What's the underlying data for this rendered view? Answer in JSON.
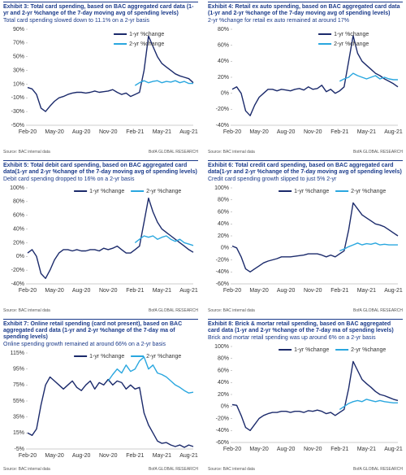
{
  "chart_data": [
    {
      "type": "line",
      "title": "Exhibit 3: Total card spending, based on BAC aggregated card data (1-yr and 2-yr %change of the 7-day moving avg of spending levels)",
      "subtitle": "Total card spending slowed down to 11.1% on a 2-yr basis",
      "source": "Source: BAC internal data",
      "credit": "BofA GLOBAL RESEARCH",
      "legend": "upper-right",
      "categories": [
        "Feb-20",
        null,
        null,
        null,
        null,
        null,
        "May-20",
        null,
        null,
        null,
        null,
        null,
        "Aug-20",
        null,
        null,
        null,
        null,
        null,
        "Nov-20",
        null,
        null,
        null,
        null,
        null,
        "Feb-21",
        null,
        null,
        null,
        null,
        null,
        "May-21",
        null,
        null,
        null,
        null,
        null,
        "Aug-21",
        null
      ],
      "ylim": [
        -50,
        90
      ],
      "yticks": [
        {
          "value": -50,
          "label": "-50%"
        },
        {
          "value": -30,
          "label": "-30%"
        },
        {
          "value": -10,
          "label": "-10%"
        },
        {
          "value": 10,
          "label": "10%"
        },
        {
          "value": 30,
          "label": "30%"
        },
        {
          "value": 50,
          "label": "50%"
        },
        {
          "value": 70,
          "label": "70%"
        },
        {
          "value": 90,
          "label": "90%"
        }
      ],
      "series": [
        {
          "name": "1-yr %change",
          "color": "#1b2a6b",
          "values": [
            5,
            3,
            -5,
            -25,
            -30,
            -22,
            -15,
            -10,
            -8,
            -5,
            -3,
            -2,
            -2,
            -3,
            -2,
            0,
            -2,
            -1,
            0,
            2,
            -2,
            -5,
            -3,
            -8,
            -5,
            -2,
            30,
            80,
            65,
            50,
            40,
            35,
            30,
            25,
            22,
            20,
            18,
            12
          ]
        },
        {
          "name": "2-yr %change",
          "color": "#2aa7df",
          "values": [
            null,
            null,
            null,
            null,
            null,
            null,
            null,
            null,
            null,
            null,
            null,
            null,
            null,
            null,
            null,
            null,
            null,
            null,
            null,
            null,
            null,
            null,
            null,
            null,
            8,
            12,
            15,
            12,
            14,
            15,
            12,
            14,
            13,
            15,
            12,
            14,
            11,
            11
          ]
        }
      ]
    },
    {
      "type": "line",
      "title": "Exhibit 4: Retail ex auto spending, based on BAC aggregated card data (1-yr and 2-yr %change of the 7-day moving avg of spending levels)",
      "subtitle": "2-yr %change for retail ex auto remained at around 17%",
      "source": "Source: BAC internal data",
      "credit": "BofA GLOBAL RESEARCH",
      "legend": "upper-right",
      "categories": [
        "Feb-20",
        null,
        null,
        null,
        null,
        null,
        "May-20",
        null,
        null,
        null,
        null,
        null,
        "Aug-20",
        null,
        null,
        null,
        null,
        null,
        "Nov-20",
        null,
        null,
        null,
        null,
        null,
        "Feb-21",
        null,
        null,
        null,
        null,
        null,
        "May-21",
        null,
        null,
        null,
        null,
        null,
        "Aug-21",
        null
      ],
      "ylim": [
        -40,
        80
      ],
      "yticks": [
        {
          "value": -40,
          "label": "-40%"
        },
        {
          "value": -20,
          "label": "-20%"
        },
        {
          "value": 0,
          "label": "0%"
        },
        {
          "value": 20,
          "label": "20%"
        },
        {
          "value": 40,
          "label": "40%"
        },
        {
          "value": 60,
          "label": "60%"
        },
        {
          "value": 80,
          "label": "80%"
        }
      ],
      "series": [
        {
          "name": "1-yr %change",
          "color": "#1b2a6b",
          "values": [
            5,
            8,
            0,
            -22,
            -28,
            -15,
            -5,
            0,
            5,
            5,
            3,
            5,
            4,
            3,
            5,
            6,
            4,
            8,
            5,
            6,
            10,
            2,
            5,
            0,
            3,
            8,
            40,
            72,
            50,
            40,
            35,
            30,
            25,
            22,
            18,
            15,
            12,
            8
          ]
        },
        {
          "name": "2-yr %change",
          "color": "#2aa7df",
          "values": [
            null,
            null,
            null,
            null,
            null,
            null,
            null,
            null,
            null,
            null,
            null,
            null,
            null,
            null,
            null,
            null,
            null,
            null,
            null,
            null,
            null,
            null,
            null,
            null,
            15,
            18,
            20,
            25,
            22,
            20,
            18,
            20,
            22,
            18,
            20,
            18,
            17,
            17
          ]
        }
      ]
    },
    {
      "type": "line",
      "title": "Exhibit 5: Total debit card spending, based on BAC aggregated card data(1-yr and 2-yr %change of the 7-day moving avg of spending levels)",
      "subtitle": "Debit card spending dropped to 16% on a 2-yr basis",
      "source": "Source: BAC internal data",
      "credit": "BofA GLOBAL RESEARCH",
      "legend": "top",
      "categories": [
        "Feb-20",
        null,
        null,
        null,
        null,
        null,
        "May-20",
        null,
        null,
        null,
        null,
        null,
        "Aug-20",
        null,
        null,
        null,
        null,
        null,
        "Nov-20",
        null,
        null,
        null,
        null,
        null,
        "Feb-21",
        null,
        null,
        null,
        null,
        null,
        "May-21",
        null,
        null,
        null,
        null,
        null,
        "Aug-21",
        null
      ],
      "ylim": [
        -40,
        100
      ],
      "yticks": [
        {
          "value": -40,
          "label": "-40%"
        },
        {
          "value": -20,
          "label": "-20%"
        },
        {
          "value": 0,
          "label": "0%"
        },
        {
          "value": 20,
          "label": "20%"
        },
        {
          "value": 40,
          "label": "40%"
        },
        {
          "value": 60,
          "label": "60%"
        },
        {
          "value": 80,
          "label": "80%"
        },
        {
          "value": 100,
          "label": "100%"
        }
      ],
      "series": [
        {
          "name": "1-yr %change",
          "color": "#1b2a6b",
          "values": [
            5,
            10,
            0,
            -25,
            -32,
            -20,
            -5,
            5,
            10,
            10,
            8,
            10,
            8,
            8,
            10,
            10,
            8,
            12,
            10,
            12,
            15,
            10,
            5,
            5,
            10,
            15,
            50,
            85,
            65,
            50,
            40,
            35,
            30,
            25,
            20,
            15,
            10,
            6
          ]
        },
        {
          "name": "2-yr %change",
          "color": "#2aa7df",
          "values": [
            null,
            null,
            null,
            null,
            null,
            null,
            null,
            null,
            null,
            null,
            null,
            null,
            null,
            null,
            null,
            null,
            null,
            null,
            null,
            null,
            null,
            null,
            null,
            null,
            20,
            25,
            30,
            28,
            30,
            25,
            28,
            30,
            25,
            22,
            25,
            20,
            18,
            16
          ]
        }
      ]
    },
    {
      "type": "line",
      "title": "Exhibit 6: Total credit card spending, based on BAC aggregated card data(1-yr and 2-yr %change of the 7-day moving avg of spending levels)",
      "subtitle": "Credit card spending growth slipped to just 5% 2-yr",
      "source": "Source: BAC internal data",
      "credit": "BofA GLOBAL RESEARCH",
      "legend": "top",
      "categories": [
        "Feb-20",
        null,
        null,
        null,
        null,
        null,
        "May-20",
        null,
        null,
        null,
        null,
        null,
        "Aug-20",
        null,
        null,
        null,
        null,
        null,
        "Nov-20",
        null,
        null,
        null,
        null,
        null,
        "Feb-21",
        null,
        null,
        null,
        null,
        null,
        "May-21",
        null,
        null,
        null,
        null,
        null,
        "Aug-21",
        null
      ],
      "ylim": [
        -60,
        100
      ],
      "yticks": [
        {
          "value": -60,
          "label": "-60%"
        },
        {
          "value": -40,
          "label": "-40%"
        },
        {
          "value": -20,
          "label": "-20%"
        },
        {
          "value": 0,
          "label": "0%"
        },
        {
          "value": 20,
          "label": "20%"
        },
        {
          "value": 40,
          "label": "40%"
        },
        {
          "value": 60,
          "label": "60%"
        },
        {
          "value": 80,
          "label": "80%"
        },
        {
          "value": 100,
          "label": "100%"
        }
      ],
      "series": [
        {
          "name": "1-yr %change",
          "color": "#1b2a6b",
          "values": [
            3,
            0,
            -15,
            -35,
            -40,
            -35,
            -30,
            -25,
            -22,
            -20,
            -18,
            -15,
            -15,
            -15,
            -14,
            -13,
            -12,
            -10,
            -10,
            -10,
            -12,
            -15,
            -12,
            -15,
            -10,
            -5,
            30,
            75,
            65,
            55,
            50,
            45,
            40,
            38,
            35,
            30,
            25,
            20
          ]
        },
        {
          "name": "2-yr %change",
          "color": "#2aa7df",
          "values": [
            null,
            null,
            null,
            null,
            null,
            null,
            null,
            null,
            null,
            null,
            null,
            null,
            null,
            null,
            null,
            null,
            null,
            null,
            null,
            null,
            null,
            null,
            null,
            null,
            -5,
            -2,
            2,
            5,
            8,
            5,
            7,
            6,
            8,
            5,
            6,
            5,
            5,
            5
          ]
        }
      ]
    },
    {
      "type": "line",
      "title": "Exhibit 7: Online retail spending (card not present), based on BAC aggregated card data (1-yr and 2-yr %change of the 7-day ma of spending levels)",
      "subtitle": "Online spending growth remained at around 66% on a 2-yr basis",
      "source": "Source: BAC internal data",
      "credit": "BofA GLOBAL RESEARCH",
      "legend": "top",
      "categories": [
        "Feb-20",
        null,
        null,
        null,
        null,
        null,
        "May-20",
        null,
        null,
        null,
        null,
        null,
        "Aug-20",
        null,
        null,
        null,
        null,
        null,
        "Nov-20",
        null,
        null,
        null,
        null,
        null,
        "Feb-21",
        null,
        null,
        null,
        null,
        null,
        "May-21",
        null,
        null,
        null,
        null,
        null,
        "Aug-21",
        null
      ],
      "ylim": [
        -5,
        115
      ],
      "yticks": [
        {
          "value": -5,
          "label": "-5%"
        },
        {
          "value": 15,
          "label": "15%"
        },
        {
          "value": 35,
          "label": "35%"
        },
        {
          "value": 55,
          "label": "55%"
        },
        {
          "value": 75,
          "label": "75%"
        },
        {
          "value": 95,
          "label": "95%"
        },
        {
          "value": 115,
          "label": "115%"
        }
      ],
      "series": [
        {
          "name": "1-yr %change",
          "color": "#1b2a6b",
          "values": [
            15,
            12,
            20,
            50,
            75,
            85,
            80,
            75,
            70,
            75,
            80,
            72,
            68,
            75,
            80,
            70,
            78,
            75,
            82,
            75,
            80,
            78,
            70,
            75,
            70,
            72,
            40,
            25,
            15,
            5,
            2,
            3,
            0,
            -2,
            0,
            -3,
            0,
            -2
          ]
        },
        {
          "name": "2-yr %change",
          "color": "#2aa7df",
          "values": [
            null,
            null,
            null,
            null,
            null,
            null,
            null,
            null,
            null,
            null,
            null,
            null,
            null,
            null,
            null,
            null,
            null,
            null,
            80,
            88,
            95,
            90,
            100,
            92,
            95,
            105,
            110,
            95,
            100,
            90,
            88,
            85,
            80,
            75,
            72,
            68,
            65,
            66
          ]
        }
      ]
    },
    {
      "type": "line",
      "title": "Exhibit 8: Brick & mortar retail spending, based on BAC aggregated card data (1-yr and 2-yr %change of the 7-day ma of spending levels)",
      "subtitle": "Brick and mortar retail spending was up around 6% on a 2-yr basis",
      "source": "Source: BAC internal data",
      "credit": "BofA GLOBAL RESEARCH",
      "legend": "top",
      "categories": [
        "Feb-20",
        null,
        null,
        null,
        null,
        null,
        "May-20",
        null,
        null,
        null,
        null,
        null,
        "Aug-20",
        null,
        null,
        null,
        null,
        null,
        "Nov-20",
        null,
        null,
        null,
        null,
        null,
        "Feb-21",
        null,
        null,
        null,
        null,
        null,
        "May-21",
        null,
        null,
        null,
        null,
        null,
        "Aug-21",
        null
      ],
      "ylim": [
        -60,
        100
      ],
      "yticks": [
        {
          "value": -60,
          "label": "-60%"
        },
        {
          "value": -40,
          "label": "-40%"
        },
        {
          "value": -20,
          "label": "-20%"
        },
        {
          "value": 0,
          "label": "0%"
        },
        {
          "value": 20,
          "label": "20%"
        },
        {
          "value": 40,
          "label": "40%"
        },
        {
          "value": 60,
          "label": "60%"
        },
        {
          "value": 80,
          "label": "80%"
        },
        {
          "value": 100,
          "label": "100%"
        }
      ],
      "series": [
        {
          "name": "1-yr %change",
          "color": "#1b2a6b",
          "values": [
            3,
            2,
            -15,
            -35,
            -40,
            -30,
            -20,
            -15,
            -12,
            -10,
            -10,
            -8,
            -8,
            -10,
            -8,
            -8,
            -10,
            -7,
            -8,
            -6,
            -8,
            -12,
            -10,
            -15,
            -10,
            -5,
            30,
            75,
            60,
            45,
            38,
            32,
            25,
            20,
            18,
            15,
            12,
            10
          ]
        },
        {
          "name": "2-yr %change",
          "color": "#2aa7df",
          "values": [
            null,
            null,
            null,
            null,
            null,
            null,
            null,
            null,
            null,
            null,
            null,
            null,
            null,
            null,
            null,
            null,
            null,
            null,
            null,
            null,
            null,
            null,
            null,
            null,
            -5,
            0,
            5,
            8,
            10,
            8,
            12,
            10,
            8,
            10,
            8,
            7,
            6,
            6
          ]
        }
      ]
    }
  ]
}
